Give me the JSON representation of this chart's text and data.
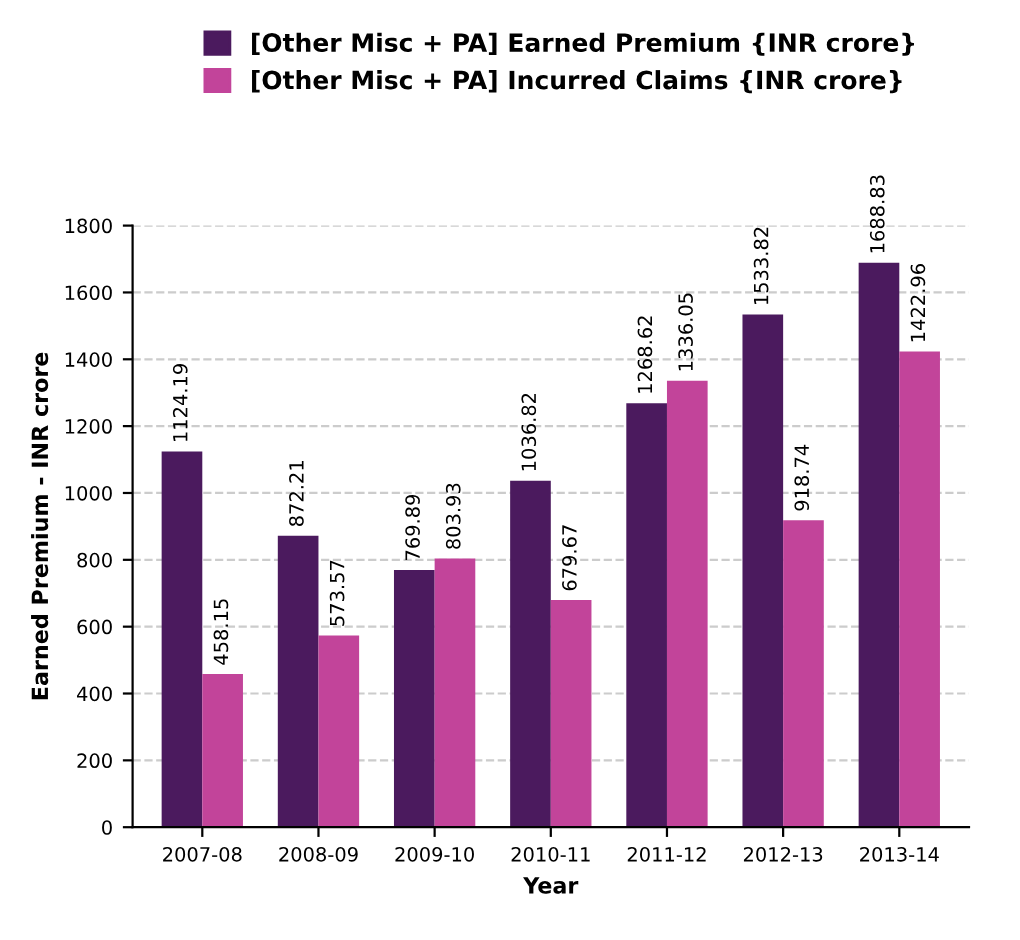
{
  "chart_data": {
    "type": "bar",
    "xlabel": "Year",
    "ylabel": "Earned Premium - INR crore",
    "categories": [
      "2007-08",
      "2008-09",
      "2009-10",
      "2010-11",
      "2011-12",
      "2012-13",
      "2013-14"
    ],
    "series": [
      {
        "name": "[Other Misc + PA] Earned Premium {INR crore}",
        "color": "#4b1a5e",
        "values": [
          1124.19,
          872.21,
          769.89,
          1036.82,
          1268.62,
          1533.82,
          1688.83
        ]
      },
      {
        "name": "[Other Misc + PA] Incurred Claims {INR crore}",
        "color": "#c2449a",
        "values": [
          458.15,
          573.57,
          803.93,
          679.67,
          1336.05,
          918.74,
          1422.96
        ]
      }
    ],
    "ylim": [
      0,
      1800
    ],
    "yticks": [
      0,
      200,
      400,
      600,
      800,
      1000,
      1200,
      1400,
      1600,
      1800
    ],
    "grid": "y",
    "legend": "top",
    "data_labels": true
  }
}
